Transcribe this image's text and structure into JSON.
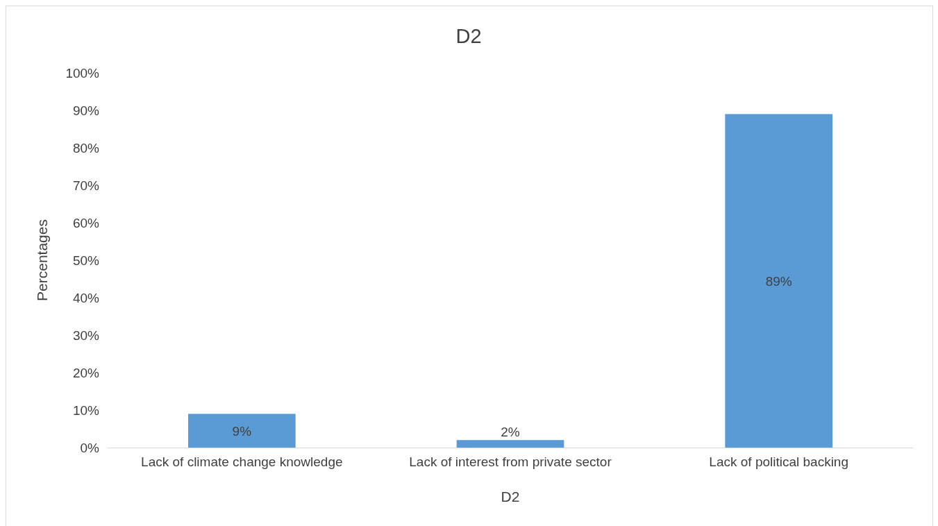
{
  "chart_data": {
    "type": "bar",
    "title": "D2",
    "xlabel": "D2",
    "ylabel": "Percentages",
    "categories": [
      "Lack of climate change knowledge",
      "Lack of interest from private sector",
      "Lack of political backing"
    ],
    "values": [
      9,
      2,
      89
    ],
    "color": "#5b9bd5",
    "value_labels": [
      "9%",
      "2%",
      "89%"
    ],
    "ylim": [
      0,
      100
    ],
    "yticks": [
      {
        "value": 0,
        "label": "0%"
      },
      {
        "value": 10,
        "label": "10%"
      },
      {
        "value": 20,
        "label": "20%"
      },
      {
        "value": 30,
        "label": "30%"
      },
      {
        "value": 40,
        "label": "40%"
      },
      {
        "value": 50,
        "label": "50%"
      },
      {
        "value": 60,
        "label": "60%"
      },
      {
        "value": 70,
        "label": "70%"
      },
      {
        "value": 80,
        "label": "80%"
      },
      {
        "value": 90,
        "label": "90%"
      },
      {
        "value": 100,
        "label": "100%"
      }
    ],
    "grid": false
  }
}
